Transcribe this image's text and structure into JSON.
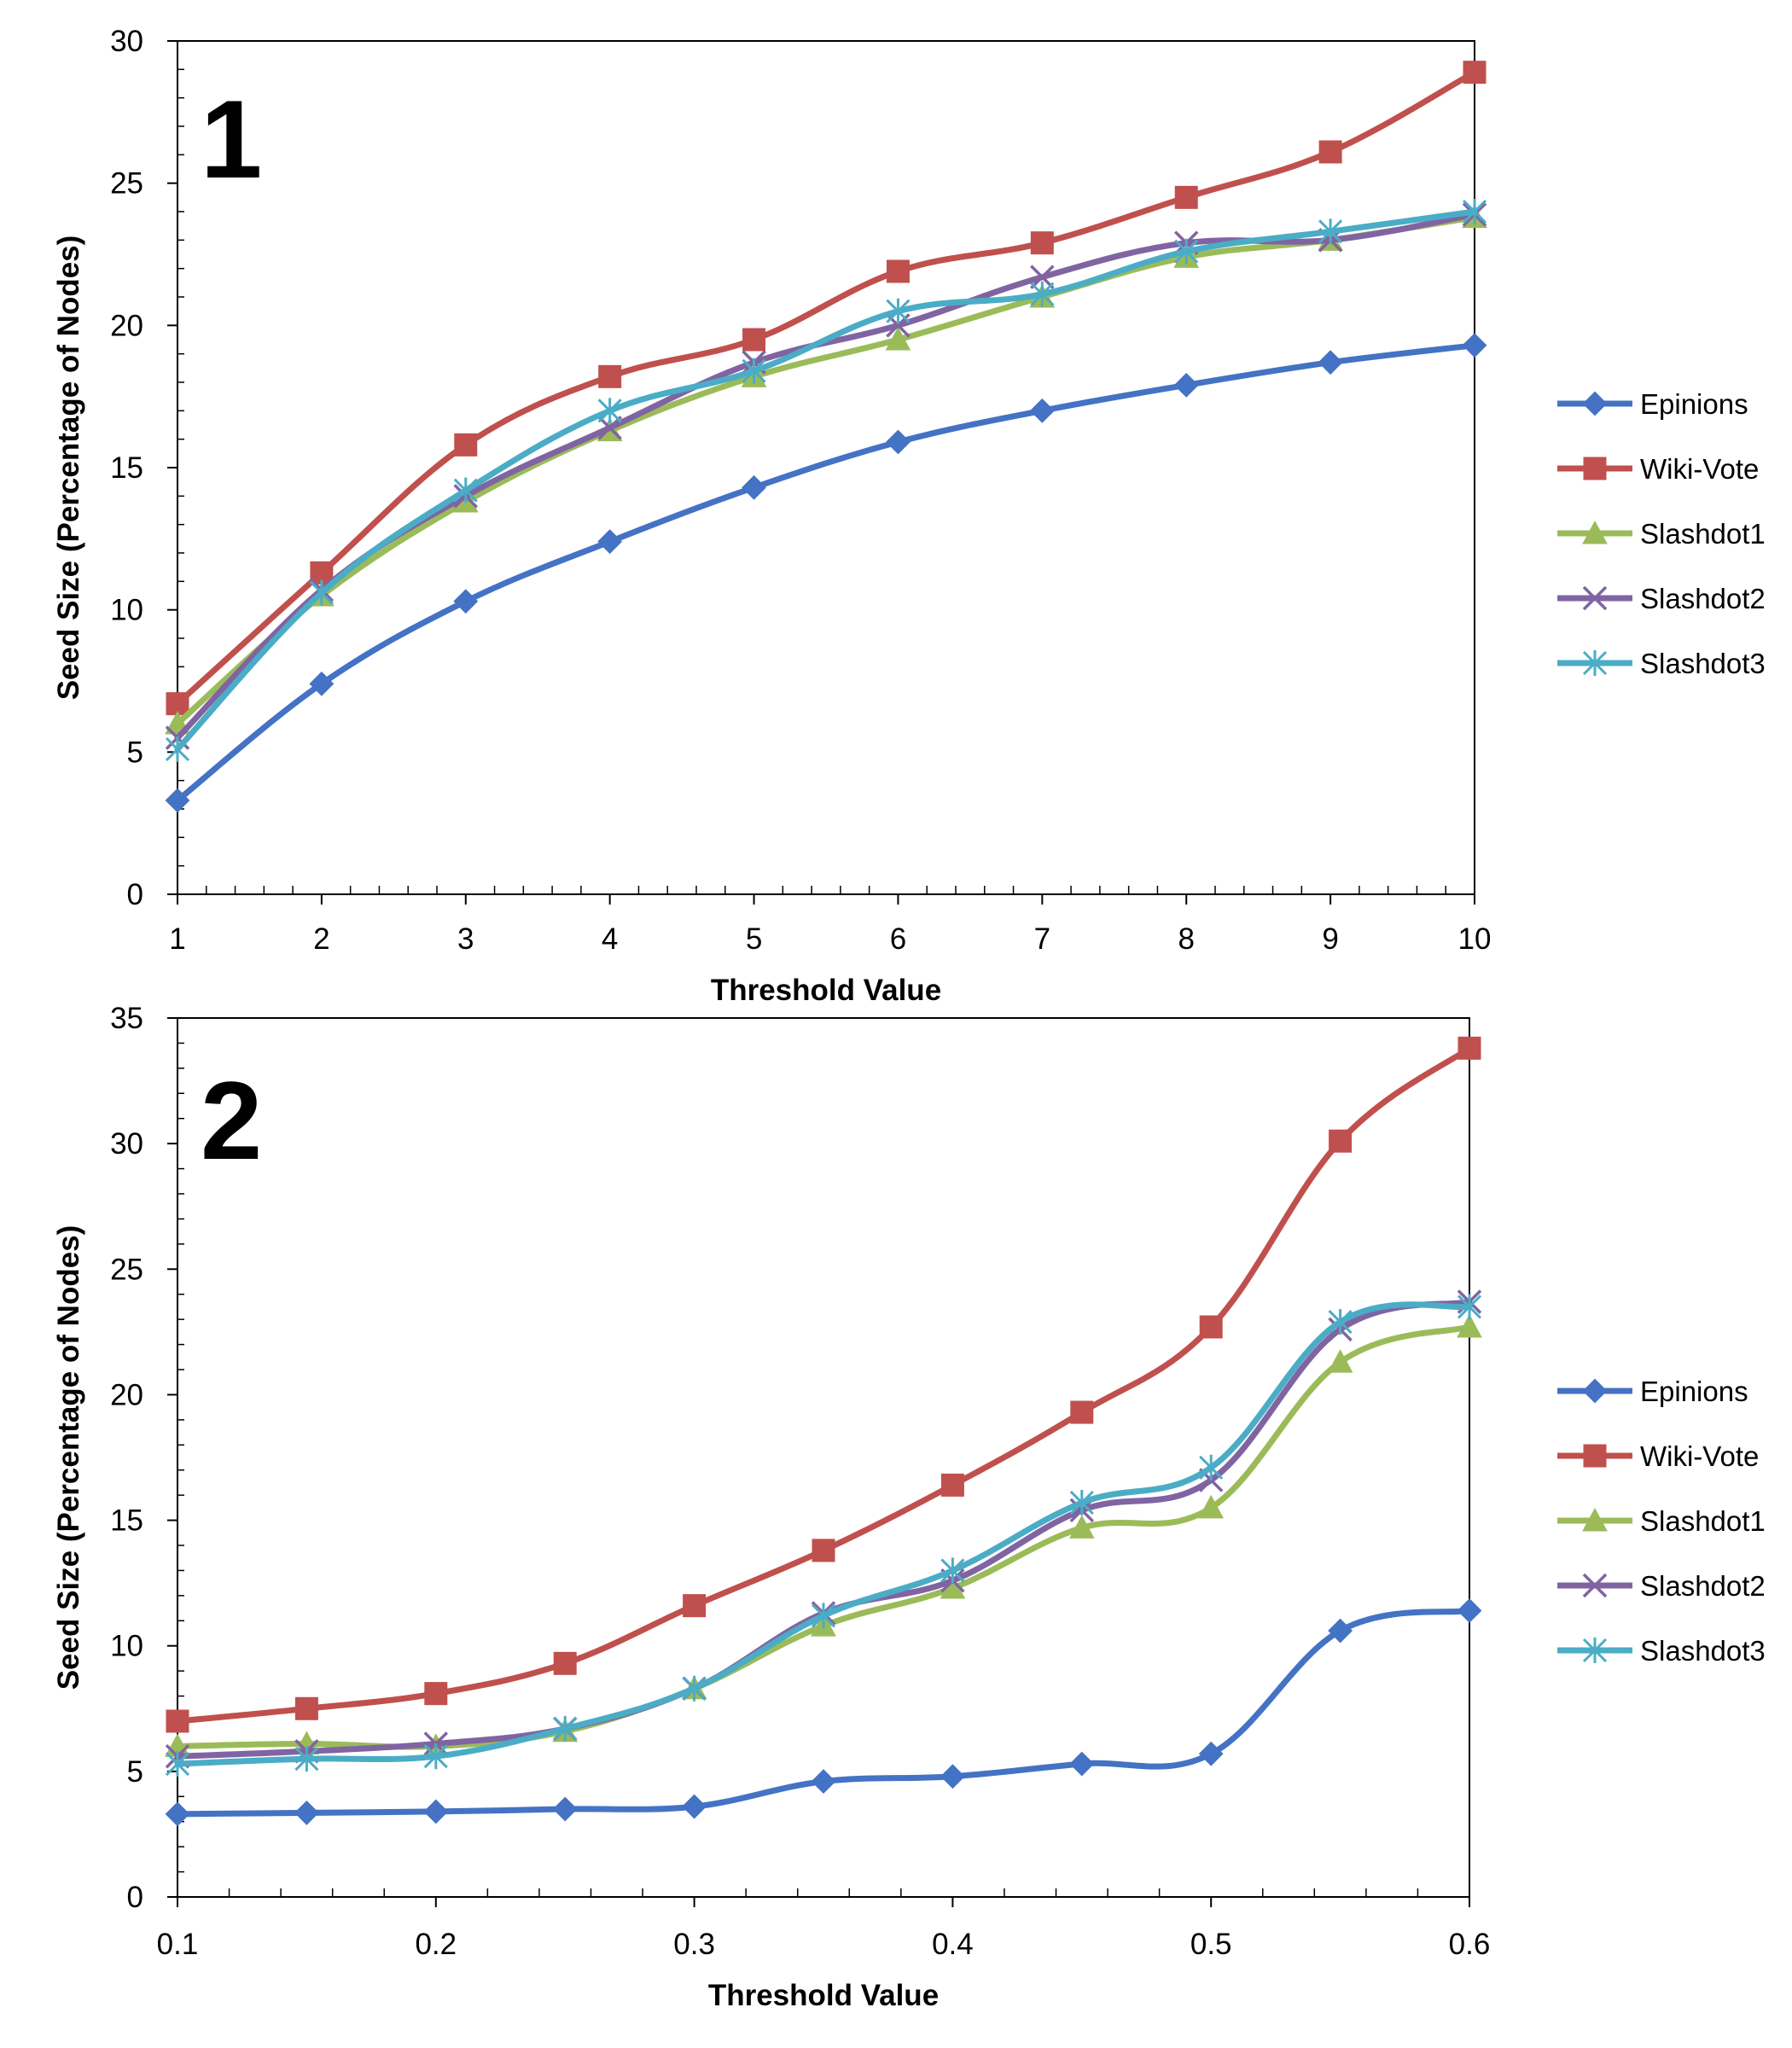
{
  "chart_data": [
    {
      "type": "line",
      "panel_label": "1",
      "title": "",
      "xlabel": "Threshold Value",
      "ylabel": "Seed Size (Percentage of Nodes)",
      "x": [
        1,
        2,
        3,
        4,
        5,
        6,
        7,
        8,
        9,
        10
      ],
      "x_tick_labels": [
        "1",
        "2",
        "3",
        "4",
        "5",
        "6",
        "7",
        "8",
        "9",
        "10"
      ],
      "ylim": [
        0,
        30
      ],
      "y_tick_labels": [
        "0",
        "5",
        "10",
        "15",
        "20",
        "25",
        "30"
      ],
      "grid": false,
      "legend_position": "right",
      "series": [
        {
          "name": "Epinions",
          "color": "#4472C4",
          "marker": "diamond",
          "values": [
            3.3,
            7.4,
            10.3,
            12.4,
            14.3,
            15.9,
            17.0,
            17.9,
            18.7,
            19.3
          ]
        },
        {
          "name": "Wiki-Vote",
          "color": "#C0504D",
          "marker": "square",
          "values": [
            6.7,
            11.3,
            15.8,
            18.2,
            19.5,
            21.9,
            22.9,
            24.5,
            26.1,
            28.9
          ]
        },
        {
          "name": "Slashdot1",
          "color": "#9BBB59",
          "marker": "triangle",
          "values": [
            6.0,
            10.5,
            13.8,
            16.3,
            18.2,
            19.5,
            21.0,
            22.4,
            23.0,
            23.8
          ]
        },
        {
          "name": "Slashdot2",
          "color": "#8064A2",
          "marker": "x",
          "values": [
            5.5,
            10.7,
            14.0,
            16.4,
            18.7,
            20.0,
            21.7,
            22.9,
            23.0,
            23.9
          ]
        },
        {
          "name": "Slashdot3",
          "color": "#4BACC6",
          "marker": "star",
          "values": [
            5.1,
            10.6,
            14.2,
            17.0,
            18.4,
            20.5,
            21.1,
            22.6,
            23.3,
            24.0
          ]
        }
      ]
    },
    {
      "type": "line",
      "panel_label": "2",
      "title": "",
      "xlabel": "Threshold Value",
      "ylabel": "Seed Size (Percentage of Nodes)",
      "x": [
        0.1,
        0.15,
        0.2,
        0.25,
        0.3,
        0.35,
        0.4,
        0.45,
        0.5,
        0.55,
        0.6
      ],
      "xlim": [
        0.1,
        0.6
      ],
      "x_tick_values": [
        0.1,
        0.2,
        0.3,
        0.4,
        0.5,
        0.6
      ],
      "x_tick_labels": [
        "0.1",
        "0.2",
        "0.3",
        "0.4",
        "0.5",
        "0.6"
      ],
      "ylim": [
        0,
        35
      ],
      "y_tick_labels": [
        "0",
        "5",
        "10",
        "15",
        "20",
        "25",
        "30",
        "35"
      ],
      "grid": false,
      "legend_position": "right",
      "series": [
        {
          "name": "Epinions",
          "color": "#4472C4",
          "marker": "diamond",
          "values": [
            3.3,
            3.35,
            3.4,
            3.5,
            3.6,
            4.6,
            4.8,
            5.3,
            5.7,
            10.6,
            11.4
          ]
        },
        {
          "name": "Wiki-Vote",
          "color": "#C0504D",
          "marker": "square",
          "values": [
            7.0,
            7.5,
            8.1,
            9.3,
            11.6,
            13.8,
            16.4,
            19.3,
            22.7,
            30.1,
            33.8
          ]
        },
        {
          "name": "Slashdot1",
          "color": "#9BBB59",
          "marker": "triangle",
          "values": [
            6.0,
            6.1,
            6.0,
            6.6,
            8.3,
            10.8,
            12.3,
            14.7,
            15.5,
            21.3,
            22.7
          ]
        },
        {
          "name": "Slashdot2",
          "color": "#8064A2",
          "marker": "x",
          "values": [
            5.6,
            5.8,
            6.1,
            6.7,
            8.3,
            11.3,
            12.6,
            15.4,
            16.6,
            22.6,
            23.7
          ]
        },
        {
          "name": "Slashdot3",
          "color": "#4BACC6",
          "marker": "star",
          "values": [
            5.3,
            5.5,
            5.6,
            6.7,
            8.3,
            11.2,
            13.0,
            15.7,
            17.1,
            22.9,
            23.5
          ]
        }
      ]
    }
  ]
}
